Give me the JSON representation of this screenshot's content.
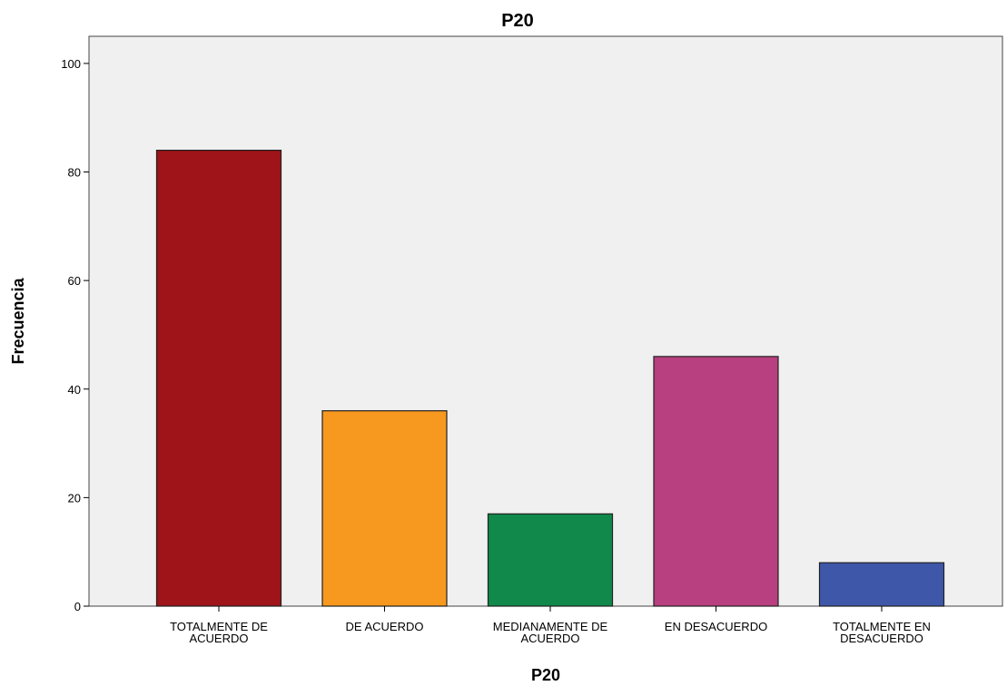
{
  "chart_data": {
    "type": "bar",
    "title": "P20",
    "xlabel": "P20",
    "ylabel": "Frecuencia",
    "categories": [
      [
        "TOTALMENTE DE",
        "ACUERDO"
      ],
      [
        "DE ACUERDO"
      ],
      [
        "MEDIANAMENTE DE",
        "ACUERDO"
      ],
      [
        "EN DESACUERDO"
      ],
      [
        "TOTALMENTE EN",
        "DESACUERDO"
      ]
    ],
    "values": [
      84,
      36,
      17,
      46,
      8
    ],
    "colors": [
      "#9e1419",
      "#f7991f",
      "#10894a",
      "#b83f80",
      "#3e57a8"
    ],
    "ylim": [
      0,
      105
    ],
    "yticks": [
      0,
      20,
      40,
      60,
      80,
      100
    ],
    "grid": false,
    "plot_background": "#f0f0f0"
  }
}
